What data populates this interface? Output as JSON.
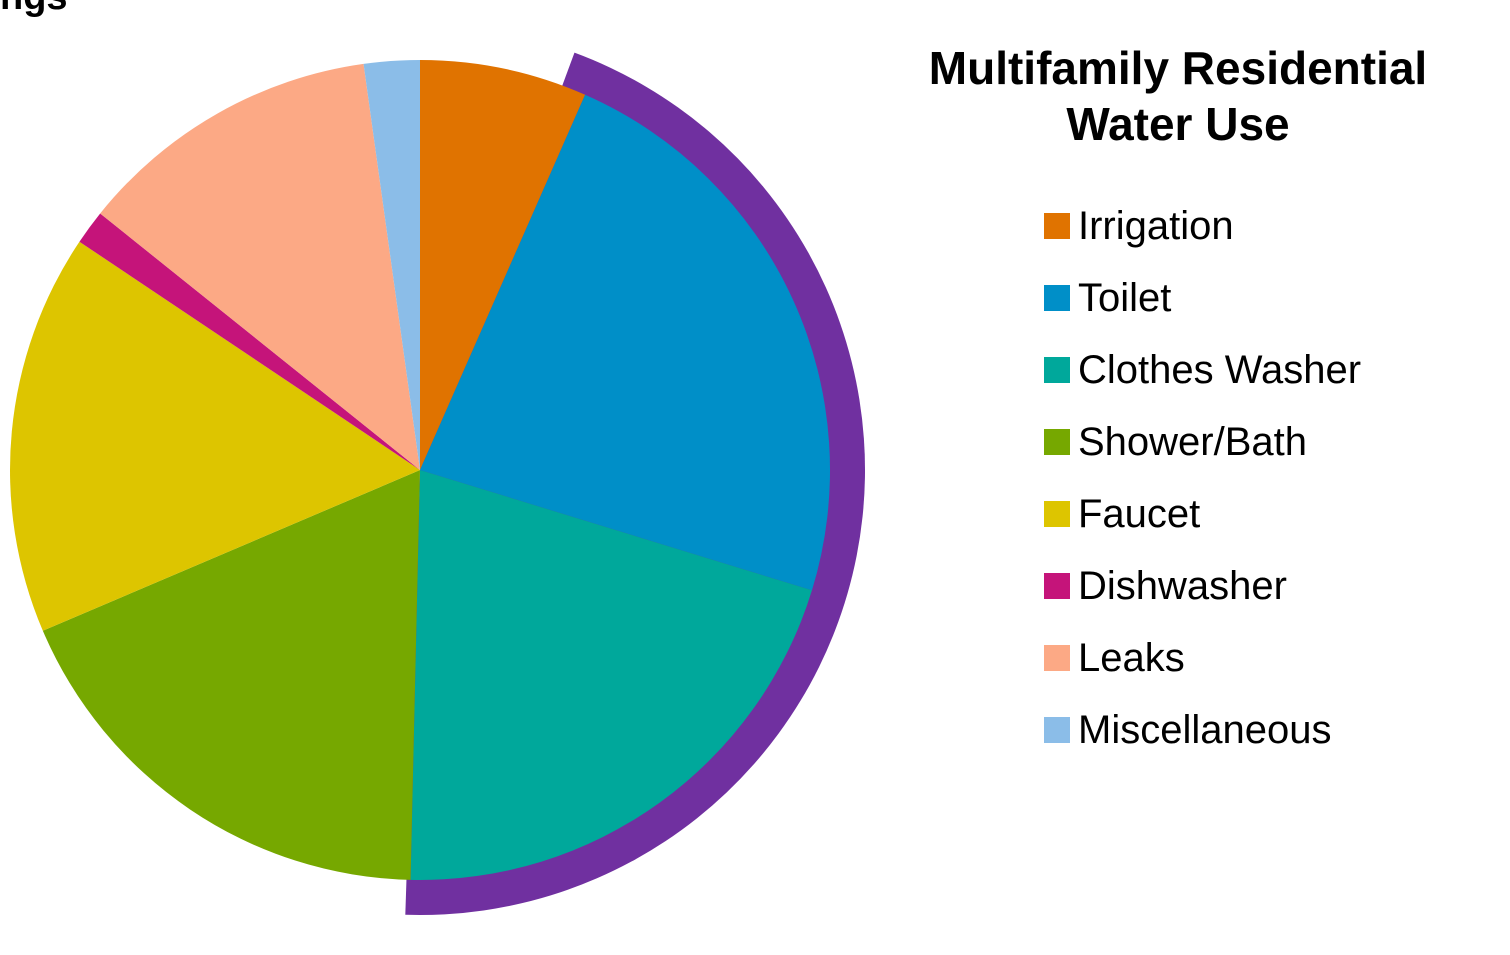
{
  "cropped_heading": "ngs",
  "chart_data": {
    "type": "pie",
    "title_lines": [
      "Multifamily Residential",
      "Water Use"
    ],
    "start_angle_deg": 0,
    "direction": "clockwise",
    "legend_position": "right",
    "categories": [
      "Irrigation",
      "Toilet",
      "Clothes Washer",
      "Shower/Bath",
      "Faucet",
      "Dishwasher",
      "Leaks",
      "Miscellaneous"
    ],
    "values": [
      6.3,
      22.1,
      19.7,
      17.4,
      15.1,
      1.3,
      11.5,
      2.1
    ],
    "colors": [
      "#e07300",
      "#008fc8",
      "#00a89b",
      "#76a800",
      "#ddc500",
      "#c5147a",
      "#fca985",
      "#8bbde8"
    ],
    "highlight": {
      "categories": [
        "Toilet",
        "Clothes Washer"
      ],
      "color": "#7030a0"
    }
  }
}
